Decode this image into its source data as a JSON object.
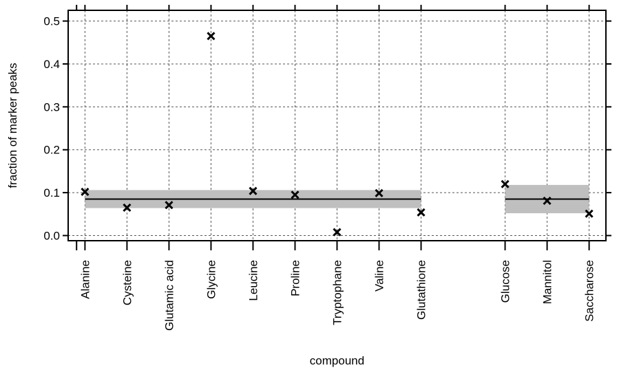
{
  "chart_data": {
    "type": "scatter",
    "title": "",
    "xlabel": "compound",
    "ylabel": "fraction of marker peaks",
    "ylim": [
      -0.012,
      0.525
    ],
    "yticks": [
      0.0,
      0.1,
      0.2,
      0.3,
      0.4,
      0.5
    ],
    "ytick_labels": [
      "0.0",
      "0.1",
      "0.2",
      "0.3",
      "0.4",
      "0.5"
    ],
    "grid": true,
    "categories": [
      "Alanine",
      "Cysteine",
      "Glutamic acid",
      "Glycine",
      "Leucine",
      "Proline",
      "Tryptophane",
      "Valine",
      "Glutathione",
      "Glucose",
      "Mannitol",
      "Saccharose"
    ],
    "category_positions": [
      1,
      2,
      3,
      4,
      5,
      6,
      7,
      8,
      9,
      11,
      12,
      13
    ],
    "series": [
      {
        "values": [
          0.102,
          0.065,
          0.071,
          0.465,
          0.104,
          0.095,
          0.008,
          0.099,
          0.054,
          0.12,
          0.081,
          0.051
        ]
      }
    ],
    "groups": [
      {
        "from": "Alanine",
        "to": "Glutathione",
        "mean": 0.085,
        "band": [
          0.064,
          0.106
        ]
      },
      {
        "from": "Glucose",
        "to": "Saccharose",
        "mean": 0.085,
        "band": [
          0.052,
          0.118
        ]
      }
    ],
    "colors": {
      "marker": "#000000",
      "band": "#bfbfbf",
      "mean_line": "#000000",
      "grid": "#555555"
    }
  }
}
